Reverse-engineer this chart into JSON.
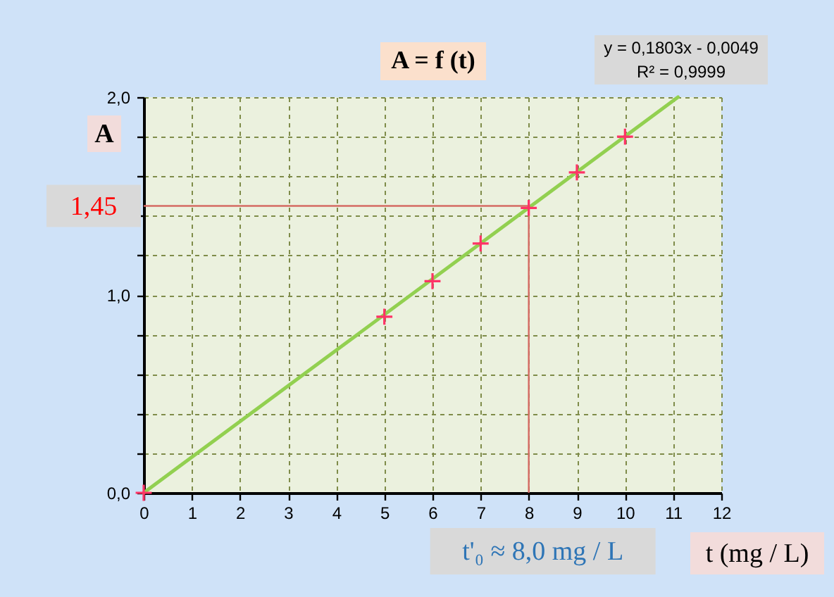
{
  "chart_data": {
    "type": "scatter",
    "title": "A = f (t)",
    "xlabel": "t (mg / L)",
    "ylabel": "A",
    "annotations": [
      "y = 0,1803x - 0,0049",
      "R² = 0,9999"
    ],
    "series": [
      {
        "type": "line",
        "color": "#92d050",
        "x": [
          0,
          11.1
        ],
        "values": [
          0,
          2.0
        ]
      },
      {
        "color": "#ff3366",
        "marker": "cross",
        "x": [
          0,
          5,
          6,
          7,
          8,
          9,
          10
        ],
        "values": [
          0,
          0.89,
          1.07,
          1.26,
          1.44,
          1.62,
          1.8
        ]
      }
    ],
    "xlim": [
      0,
      12
    ],
    "ylim": [
      0,
      2.0
    ],
    "xticks": [
      0,
      1,
      2,
      3,
      4,
      5,
      6,
      7,
      8,
      9,
      10,
      11,
      12
    ],
    "yticks": [
      {
        "value": 0,
        "label": "0,0"
      },
      {
        "value": 0.2,
        "label": null
      },
      {
        "value": 0.4,
        "label": null
      },
      {
        "value": 0.6,
        "label": null
      },
      {
        "value": 0.8,
        "label": null
      },
      {
        "value": 1.0,
        "label": "1,0"
      },
      {
        "value": 1.2,
        "label": null
      },
      {
        "value": 1.4,
        "label": null
      },
      {
        "value": 1.6,
        "label": null
      },
      {
        "value": 1.8,
        "label": null
      },
      {
        "value": 2.0,
        "label": "2,0"
      }
    ],
    "ref_lines": [
      {
        "axis": "y",
        "value": 1.45,
        "label": "1,45",
        "color": "#d46a62"
      },
      {
        "axis": "x",
        "value": 8,
        "label": "t'₀ ≈ 8,0 mg / L",
        "color": "#d46a62"
      }
    ],
    "grid": true
  }
}
